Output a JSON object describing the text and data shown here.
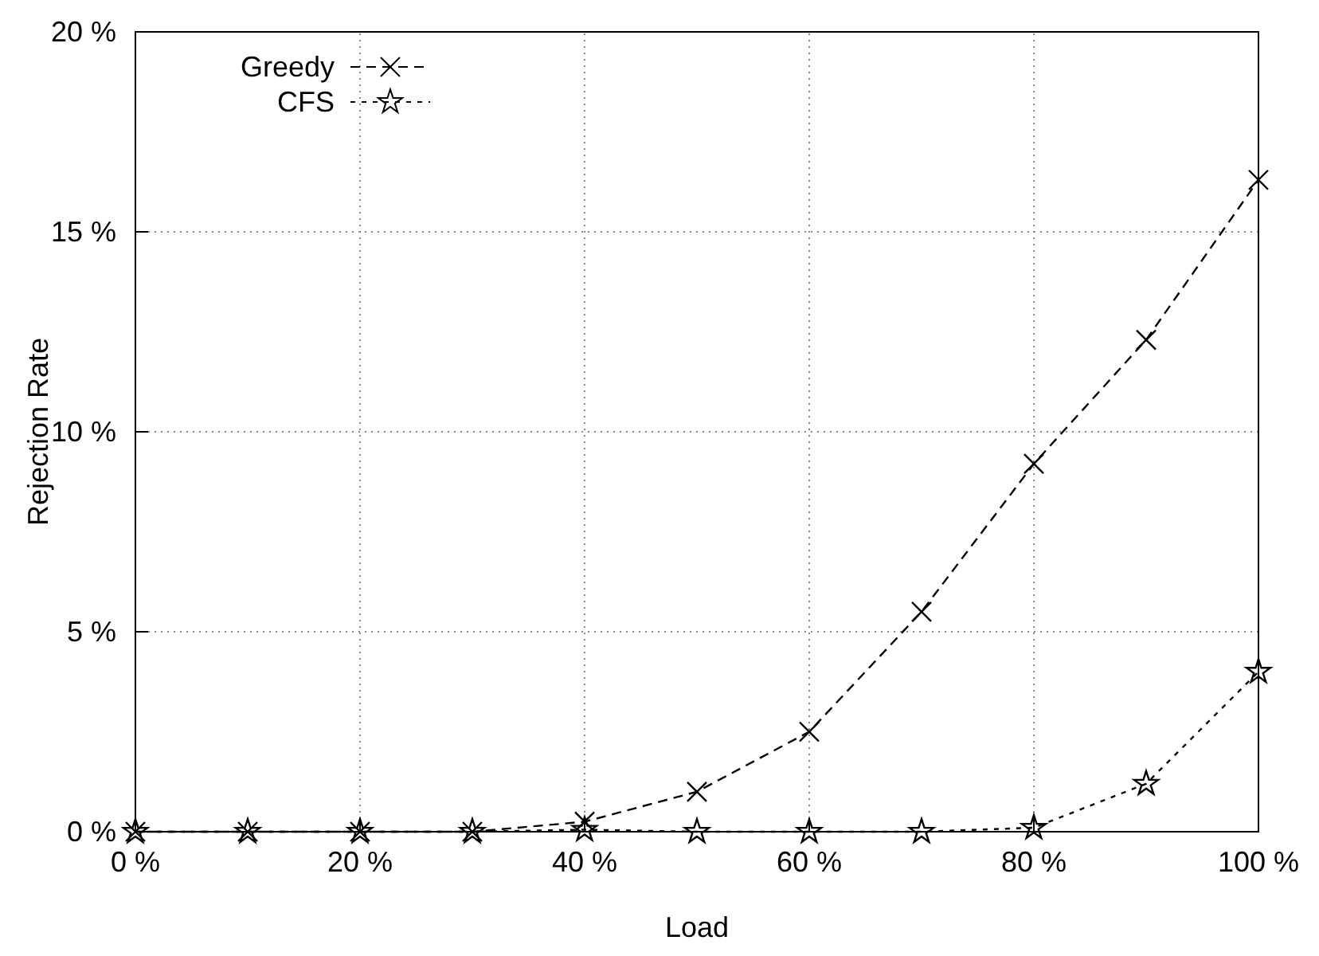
{
  "chart_data": {
    "type": "line",
    "xlabel": "Load",
    "ylabel": "Rejection Rate",
    "x": [
      0,
      10,
      20,
      30,
      40,
      50,
      60,
      70,
      80,
      90,
      100
    ],
    "series": [
      {
        "name": "Greedy",
        "color": "#000000",
        "marker": "cross",
        "line_style": "dashed",
        "values": [
          0,
          0,
          0,
          0,
          0.25,
          1,
          2.5,
          5.5,
          9.2,
          12.3,
          16.3
        ]
      },
      {
        "name": "CFS",
        "color": "#000000",
        "marker": "star",
        "line_style": "dotted",
        "values": [
          0,
          0,
          0,
          0,
          0.05,
          0,
          0,
          0,
          0.1,
          1.2,
          4
        ]
      }
    ],
    "xlim": [
      0,
      100
    ],
    "ylim": [
      0,
      20
    ],
    "xticks": [
      {
        "value": 0,
        "label": "0 %"
      },
      {
        "value": 20,
        "label": "20 %"
      },
      {
        "value": 40,
        "label": "40 %"
      },
      {
        "value": 60,
        "label": "60 %"
      },
      {
        "value": 80,
        "label": "80 %"
      },
      {
        "value": 100,
        "label": "100 %"
      }
    ],
    "yticks": [
      {
        "value": 0,
        "label": "0 %"
      },
      {
        "value": 5,
        "label": "5 %"
      },
      {
        "value": 10,
        "label": "10 %"
      },
      {
        "value": 15,
        "label": "15 %"
      },
      {
        "value": 20,
        "label": "20 %"
      }
    ],
    "grid": true,
    "legend": "top left"
  }
}
